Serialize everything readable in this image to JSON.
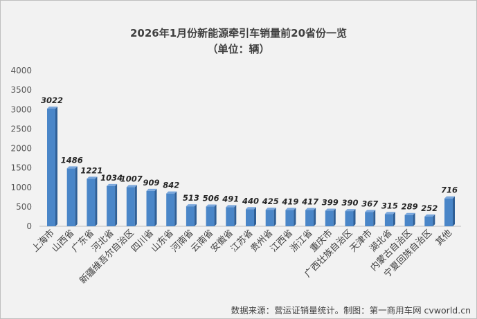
{
  "chart_data": {
    "type": "bar",
    "title": "2026年1月份新能源牵引车销量前20省份一览",
    "subtitle": "（单位：辆）",
    "categories": [
      "上海市",
      "山西省",
      "广东省",
      "河北省",
      "新疆维吾尔自治区",
      "四川省",
      "山东省",
      "河南省",
      "云南省",
      "安徽省",
      "江苏省",
      "贵州省",
      "江西省",
      "浙江省",
      "重庆市",
      "广西壮族自治区",
      "天津市",
      "湖北省",
      "内蒙古自治区",
      "宁夏回族自治区",
      "其他"
    ],
    "values": [
      3022,
      1486,
      1221,
      1034,
      1007,
      909,
      842,
      513,
      506,
      491,
      440,
      425,
      419,
      417,
      399,
      390,
      367,
      315,
      289,
      252,
      716
    ],
    "ylim": [
      0,
      4000
    ],
    "yticks": [
      0,
      500,
      1000,
      1500,
      2000,
      2500,
      3000,
      3500,
      4000
    ],
    "grid": false,
    "bar_color": "#4a86c8",
    "source": "数据来源：营运证销量统计。制图：第一商用车网 cvworld.cn"
  }
}
